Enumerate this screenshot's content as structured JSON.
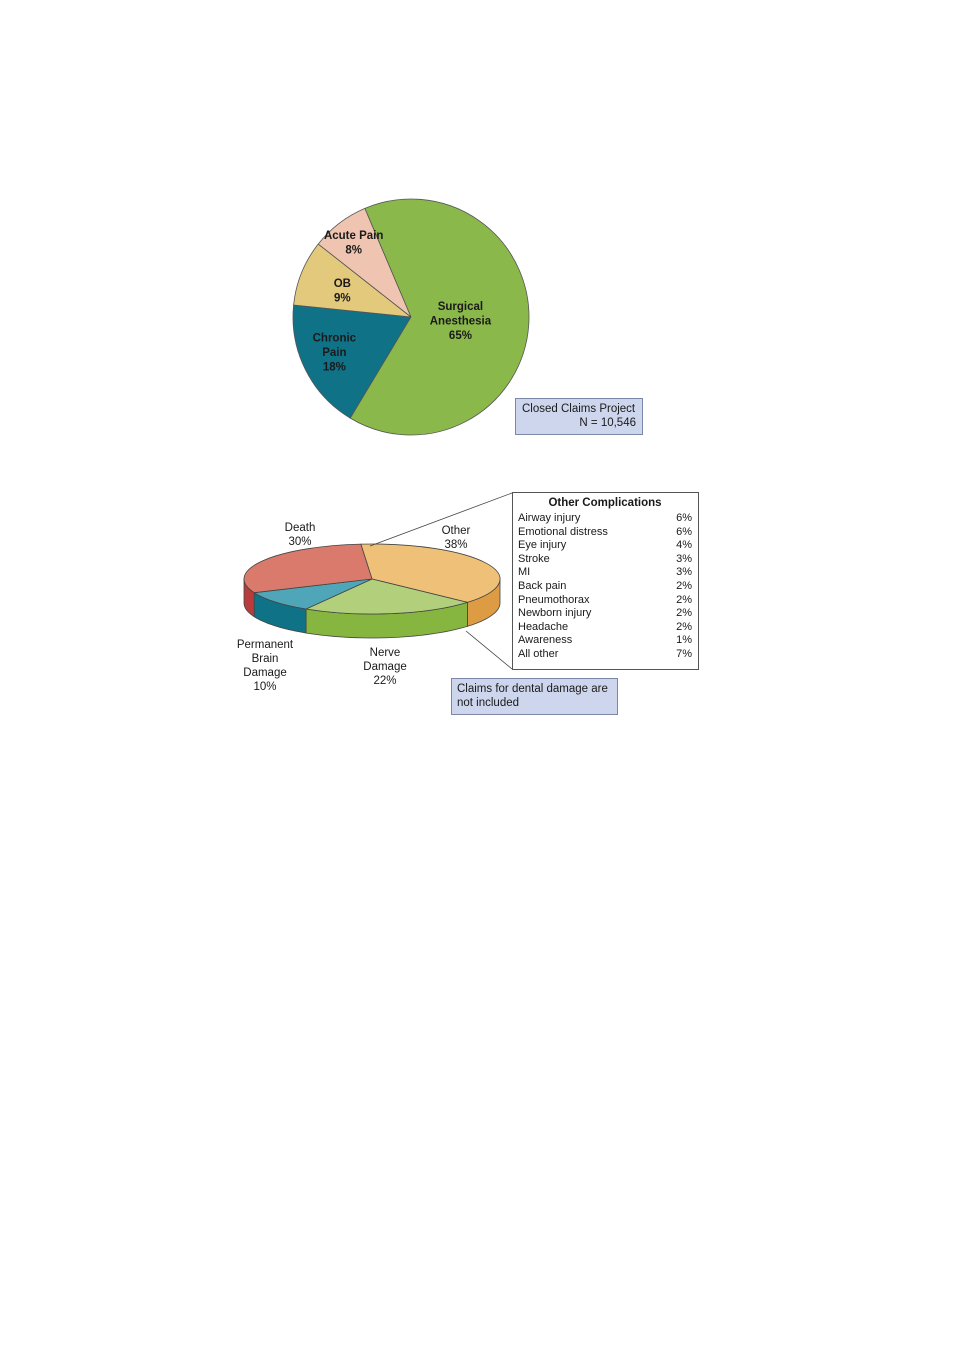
{
  "chart_data": [
    {
      "type": "pie",
      "slices": [
        {
          "label_lines": [
            "Chronic",
            "Pain"
          ],
          "value": 18,
          "value_label": "18%",
          "color": "#0f7287"
        },
        {
          "label_lines": [
            "OB"
          ],
          "value": 9,
          "value_label": "9%",
          "color": "#e3c97c"
        },
        {
          "label_lines": [
            "Acute Pain"
          ],
          "value": 8,
          "value_label": "8%",
          "color": "#efc5b2"
        },
        {
          "label_lines": [
            "Surgical",
            "Anesthesia"
          ],
          "value": 65,
          "value_label": "65%",
          "color": "#8ab84a"
        }
      ],
      "note_lines": [
        "Closed Claims Project",
        "N = 10,546"
      ]
    },
    {
      "type": "pie",
      "slices": [
        {
          "label_lines": [
            "Other"
          ],
          "value": 38,
          "value_label": "38%",
          "color": "#eec078",
          "side_color": "#dd9b44"
        },
        {
          "label_lines": [
            "Nerve",
            "Damage"
          ],
          "value": 22,
          "value_label": "22%",
          "color": "#b2cf7c",
          "side_color": "#86b540"
        },
        {
          "label_lines": [
            "Permanent",
            "Brain",
            "Damage"
          ],
          "value": 10,
          "value_label": "10%",
          "color": "#4ea6b8",
          "side_color": "#0f7287"
        },
        {
          "label_lines": [
            "Death"
          ],
          "value": 30,
          "value_label": "30%",
          "color": "#d97a6c",
          "side_color": "#b83c3c"
        }
      ],
      "breakdown": {
        "title": "Other Complications",
        "items": [
          {
            "label": "Airway injury",
            "value": "6%"
          },
          {
            "label": "Emotional distress",
            "value": "6%"
          },
          {
            "label": "Eye injury",
            "value": "4%"
          },
          {
            "label": "Stroke",
            "value": "3%"
          },
          {
            "label": "MI",
            "value": "3%"
          },
          {
            "label": "Back pain",
            "value": "2%"
          },
          {
            "label": "Pneumothorax",
            "value": "2%"
          },
          {
            "label": "Newborn injury",
            "value": "2%"
          },
          {
            "label": "Headache",
            "value": "2%"
          },
          {
            "label": "Awareness",
            "value": "1%"
          },
          {
            "label": "All other",
            "value": "7%"
          }
        ]
      },
      "note_lines": [
        "Claims for dental damage are",
        "not included"
      ]
    }
  ]
}
